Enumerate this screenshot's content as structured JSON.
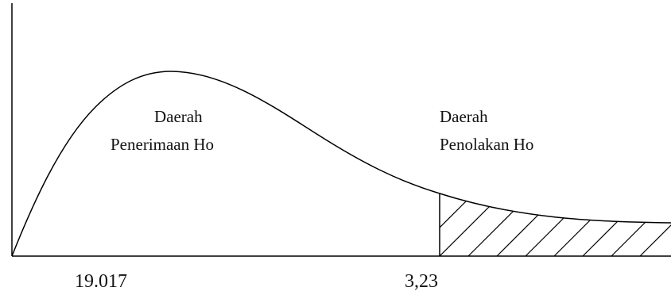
{
  "regions": {
    "acceptance": {
      "line1": "Daerah",
      "line2": "Penerimaan Ho"
    },
    "rejection": {
      "line1": "Daerah",
      "line2": "Penolakan Ho"
    }
  },
  "axis_labels": {
    "computed_value": "19.017",
    "critical_value": "3,23"
  },
  "colors": {
    "stroke": "#000000",
    "text": "#111111"
  }
}
